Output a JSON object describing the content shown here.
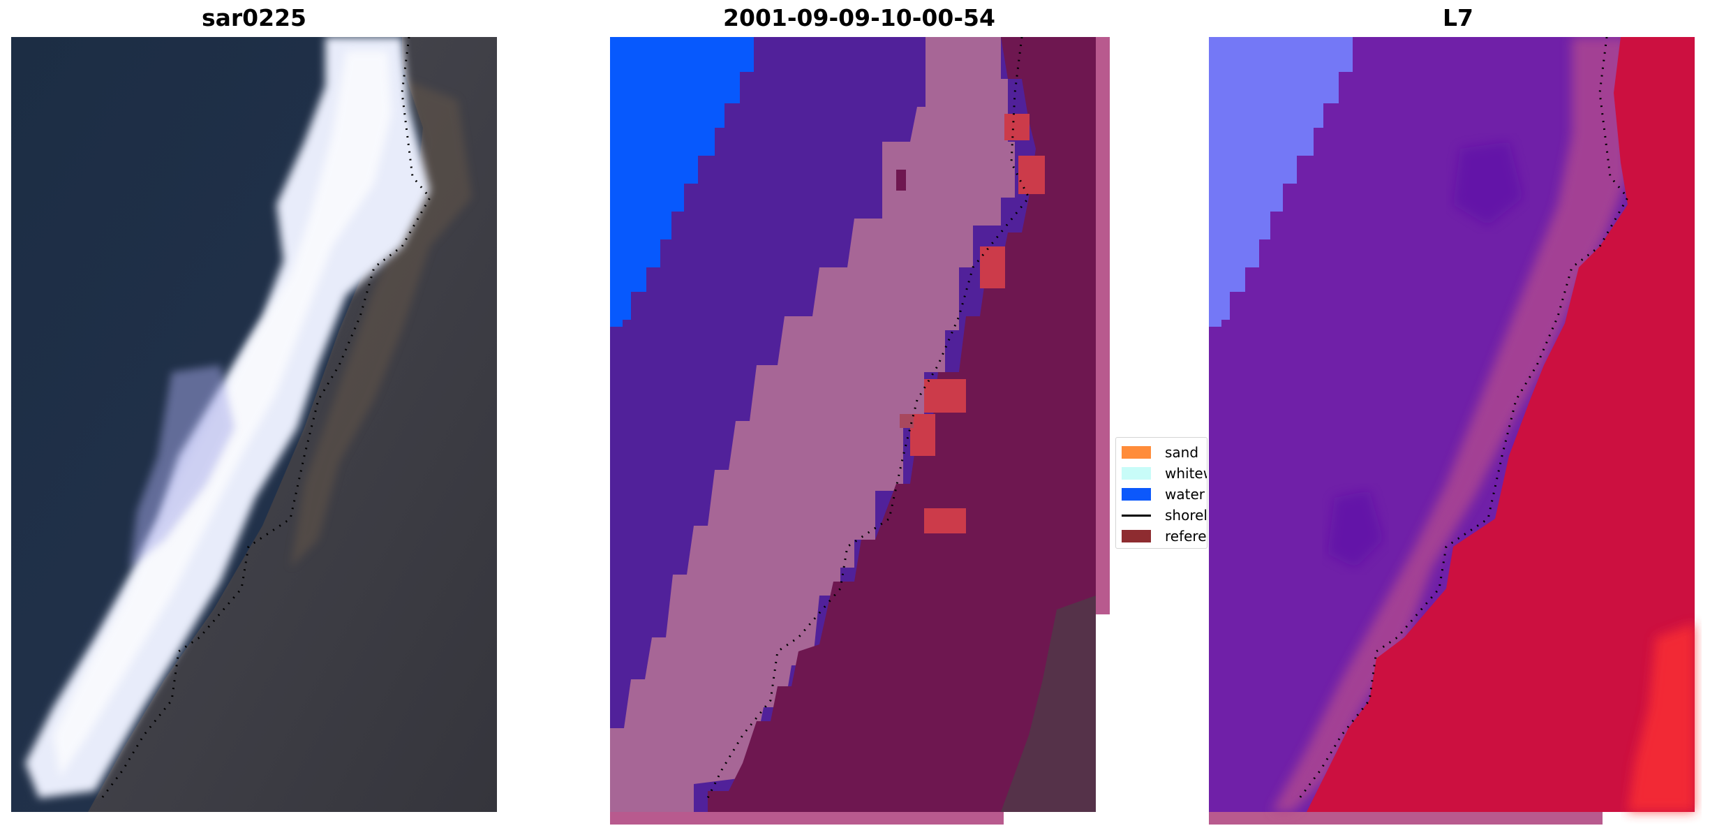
{
  "panels": [
    {
      "title": "sar0225"
    },
    {
      "title": "2001-09-09-10-00-54"
    },
    {
      "title": "L7"
    }
  ],
  "legend": {
    "items": [
      {
        "label": "sand",
        "color": "#ff8c3a",
        "kind": "patch"
      },
      {
        "label": "whitew",
        "color": "#c8fcf8",
        "kind": "patch"
      },
      {
        "label": "water",
        "color": "#0c58fb",
        "kind": "patch"
      },
      {
        "label": "shorel",
        "color": "#000000",
        "kind": "line"
      },
      {
        "label": "referer",
        "color": "#8e2c30",
        "kind": "patch"
      }
    ]
  },
  "colors": {
    "rgb_water": "#1e3048",
    "rgb_whitewater": "#e8ecfa",
    "rgb_land": "#3c3a40",
    "class_water": "#0759fd",
    "class_ocean": "#51219a",
    "class_swash": "#a76696",
    "class_land": "#6e1750",
    "class_patch": "#cc3b4a",
    "class_fringe": "#b85a8e",
    "ndwi_high": "#7478f6",
    "ndwi_mid": "#7020a8",
    "ndwi_low": "#cc1040",
    "shoreline": "#000000"
  }
}
